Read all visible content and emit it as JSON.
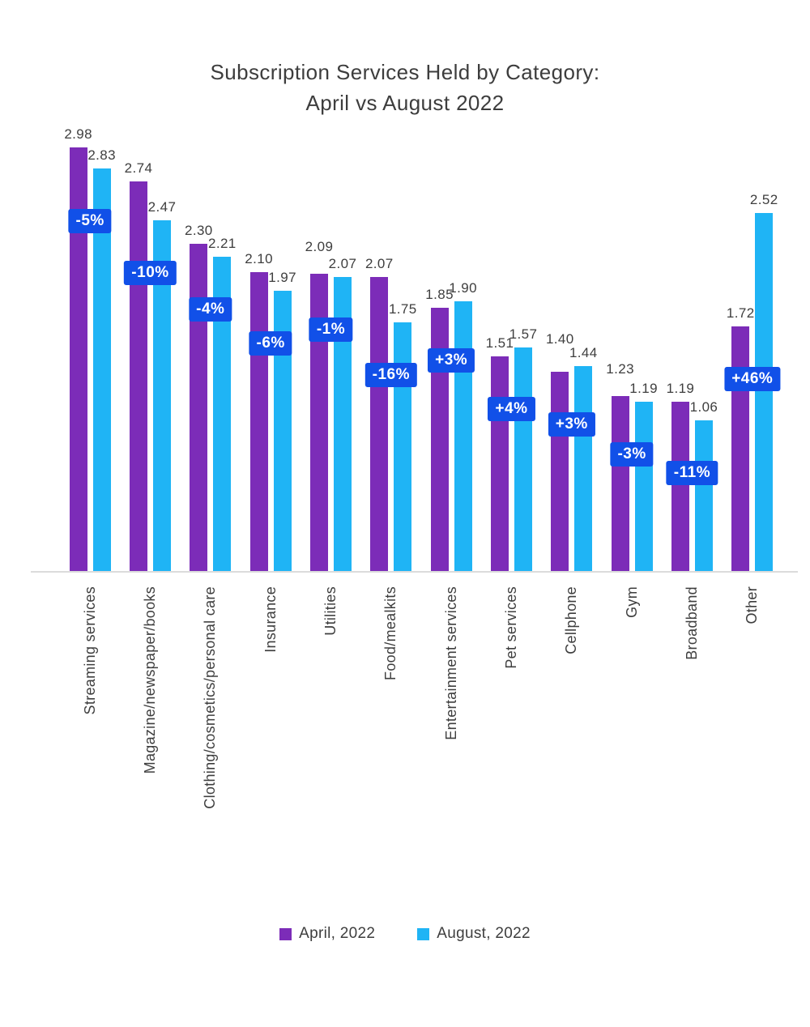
{
  "title": {
    "line1": "Subscription Services Held by Category:",
    "line2": "April vs August 2022"
  },
  "chart_data": {
    "type": "bar",
    "title": "Subscription Services Held by Category: April vs August 2022",
    "categories": [
      "Streaming services",
      "Magazine/newspaper/books",
      "Clothing/cosmetics/personal care",
      "Insurance",
      "Utilities",
      "Food/mealkits",
      "Entertainment services",
      "Pet services",
      "Cellphone",
      "Gym",
      "Broadband",
      "Other"
    ],
    "series": [
      {
        "name": "April, 2022",
        "color": "#7c2cb8",
        "values": [
          2.98,
          2.74,
          2.3,
          2.1,
          2.09,
          2.07,
          1.85,
          1.51,
          1.4,
          1.23,
          1.19,
          1.72
        ]
      },
      {
        "name": "August, 2022",
        "color": "#1fb4f5",
        "values": [
          2.83,
          2.47,
          2.21,
          1.97,
          2.07,
          1.75,
          1.9,
          1.57,
          1.44,
          1.19,
          1.06,
          2.52
        ]
      }
    ],
    "change_badges": [
      "-5%",
      "-10%",
      "-4%",
      "-6%",
      "-1%",
      "-16%",
      "+3%",
      "+4%",
      "+3%",
      "-3%",
      "-11%",
      "+46%"
    ],
    "badge_color": "#1150e8",
    "value_label_decimals": 2,
    "xlabel": "",
    "ylabel": "",
    "ylim": [
      0,
      3.16
    ],
    "grid": false,
    "legend_position": "bottom"
  }
}
